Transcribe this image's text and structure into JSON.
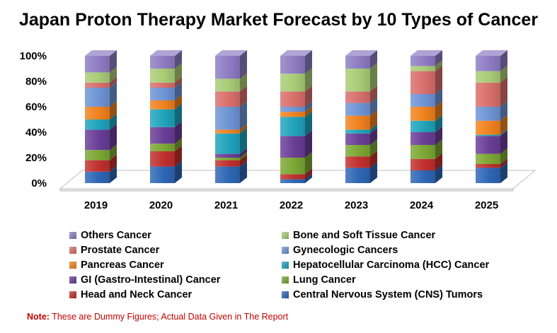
{
  "chart_data": {
    "type": "bar",
    "stacked": true,
    "percent": true,
    "title": "Japan Proton Therapy Market Forecast by 10 Types of Cancer",
    "categories": [
      "2019",
      "2020",
      "2021",
      "2022",
      "2023",
      "2024",
      "2025"
    ],
    "ylim": [
      0,
      100
    ],
    "yticks": [
      "0%",
      "20%",
      "40%",
      "60%",
      "80%",
      "100%"
    ],
    "legend_position": "bottom",
    "series": [
      {
        "name": "Central Nervous System (CNS) Tumors",
        "color": "#2E66B5",
        "values": [
          9,
          13,
          13,
          3,
          12,
          10,
          12
        ]
      },
      {
        "name": "Head and Neck Cancer",
        "color": "#C0302E",
        "values": [
          9,
          12,
          5,
          4,
          9,
          9,
          3
        ]
      },
      {
        "name": "Lung Cancer",
        "color": "#7CA734",
        "values": [
          8,
          6,
          2,
          13,
          9,
          11,
          8
        ]
      },
      {
        "name": "GI (Gastro-Intestinal) Cancer",
        "color": "#6A3E97",
        "values": [
          16,
          13,
          3,
          17,
          9,
          10,
          14
        ]
      },
      {
        "name": "Hepatocellular Carcinoma (HCC) Cancer",
        "color": "#20A3BC",
        "values": [
          8,
          14,
          16,
          15,
          3,
          9,
          1
        ]
      },
      {
        "name": "Pancreas Cancer",
        "color": "#F0821E",
        "values": [
          10,
          7,
          3,
          4,
          11,
          11,
          11
        ]
      },
      {
        "name": "Gynecologic Cancers",
        "color": "#6E94D4",
        "values": [
          15,
          10,
          18,
          4,
          10,
          10,
          11
        ]
      },
      {
        "name": "Prostate Cancer",
        "color": "#D86F6C",
        "values": [
          4,
          4,
          12,
          12,
          9,
          18,
          19
        ]
      },
      {
        "name": "Bone and Soft Tissue Cancer",
        "color": "#A9CC76",
        "values": [
          8,
          11,
          10,
          14,
          18,
          4,
          9
        ]
      },
      {
        "name": "Others Cancer",
        "color": "#8E7CC3",
        "values": [
          13,
          10,
          18,
          14,
          10,
          8,
          12
        ]
      }
    ]
  },
  "legend_order": [
    9,
    8,
    7,
    6,
    5,
    4,
    3,
    2,
    1,
    0
  ],
  "note": {
    "prefix": "Note:",
    "text": " These are Dummy Figures; Actual Data Given in The Report"
  }
}
